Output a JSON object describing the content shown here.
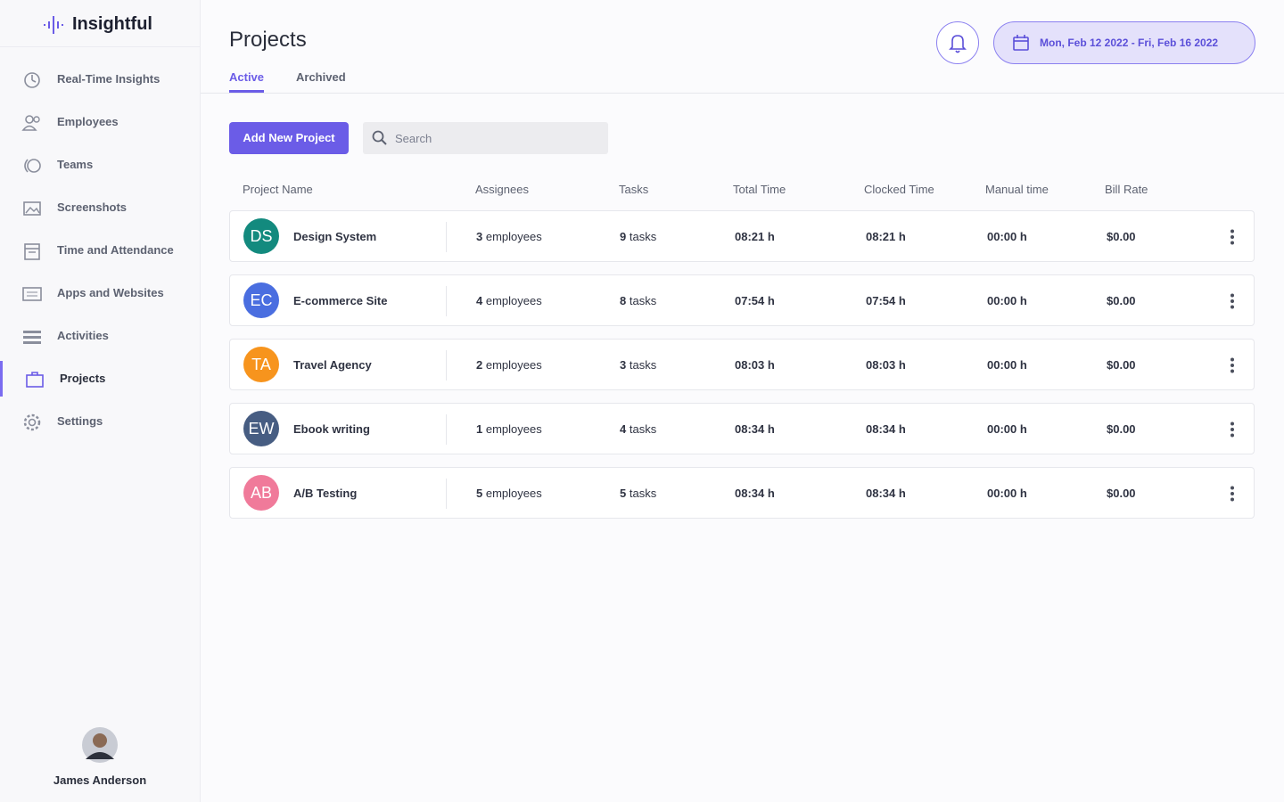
{
  "brand": "Insightful",
  "nav": {
    "items": [
      "Real-Time Insights",
      "Employees",
      "Teams",
      "Screenshots",
      "Time and Attendance",
      "Apps and Websites",
      "Activities",
      "Projects",
      "Settings"
    ],
    "active": 7
  },
  "user": {
    "name": "James Anderson"
  },
  "header": {
    "title": "Projects",
    "tabs": [
      "Active",
      "Archived"
    ],
    "active_tab": 0,
    "date_range": "Mon, Feb 12 2022 - Fri,  Feb 16 2022"
  },
  "toolbar": {
    "add_button": "Add New Project",
    "search_placeholder": "Search"
  },
  "table": {
    "columns": [
      "Project Name",
      "Assignees",
      "Tasks",
      "Total Time",
      "Clocked Time",
      "Manual time",
      "Bill Rate"
    ],
    "rows": [
      {
        "initials": "DS",
        "color": "#138a7e",
        "name": "Design System",
        "assignees": 3,
        "assignees_unit": "employees",
        "tasks": 9,
        "tasks_unit": "tasks",
        "total_time": "08:21 h",
        "clocked_time": "08:21 h",
        "manual_time": "00:00 h",
        "bill_rate": "$0.00"
      },
      {
        "initials": "EC",
        "color": "#4a6ee0",
        "name": "E-commerce Site",
        "assignees": 4,
        "assignees_unit": "employees",
        "tasks": 8,
        "tasks_unit": "tasks",
        "total_time": "07:54 h",
        "clocked_time": "07:54 h",
        "manual_time": "00:00 h",
        "bill_rate": "$0.00"
      },
      {
        "initials": "TA",
        "color": "#f7941d",
        "name": "Travel Agency",
        "assignees": 2,
        "assignees_unit": "employees",
        "tasks": 3,
        "tasks_unit": "tasks",
        "total_time": "08:03 h",
        "clocked_time": "08:03 h",
        "manual_time": "00:00 h",
        "bill_rate": "$0.00"
      },
      {
        "initials": "EW",
        "color": "#475d82",
        "name": "Ebook writing",
        "assignees": 1,
        "assignees_unit": "employees",
        "tasks": 4,
        "tasks_unit": "tasks",
        "total_time": "08:34 h",
        "clocked_time": "08:34 h",
        "manual_time": "00:00 h",
        "bill_rate": "$0.00"
      },
      {
        "initials": "AB",
        "color": "#f07a9a",
        "name": "A/B Testing",
        "assignees": 5,
        "assignees_unit": "employees",
        "tasks": 5,
        "tasks_unit": "tasks",
        "total_time": "08:34 h",
        "clocked_time": "08:34 h",
        "manual_time": "00:00 h",
        "bill_rate": "$0.00"
      }
    ]
  }
}
